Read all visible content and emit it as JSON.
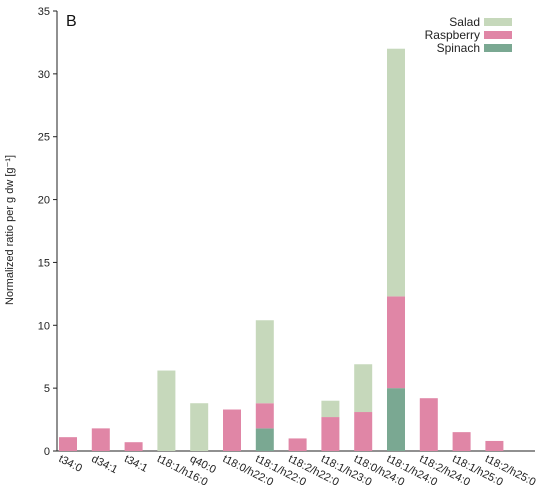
{
  "chart_data": {
    "type": "bar",
    "stacked": true,
    "panel_label": "B",
    "ylabel": "Normalized ratio per g dw [g⁻¹]",
    "xlabel": "",
    "ylim": [
      0,
      35
    ],
    "yticks": [
      0,
      5,
      10,
      15,
      20,
      25,
      30,
      35
    ],
    "grid": false,
    "legend_position": "top-right",
    "categories": [
      "t34:0",
      "d34:1",
      "t34:1",
      "t18:1/h16:0",
      "q40:0",
      "t18:0/h22:0",
      "t18:1/h22:0",
      "t18:2/h22:0",
      "t18:1/h23:0",
      "t18:0/h24:0",
      "t18:1/h24:0",
      "t18:2/h24:0",
      "t18:1/h25:0",
      "t18:2/h25:0"
    ],
    "series": [
      {
        "name": "Spinach",
        "color": "#7aa892",
        "values": [
          0,
          0,
          0,
          0,
          0,
          0,
          1.8,
          0,
          0,
          0,
          5.0,
          0,
          0,
          0
        ]
      },
      {
        "name": "Raspberry",
        "color": "#e086a6",
        "values": [
          1.1,
          1.8,
          0.7,
          0,
          0,
          3.3,
          2.0,
          1.0,
          2.7,
          3.1,
          7.3,
          4.2,
          1.5,
          0.8
        ]
      },
      {
        "name": "Salad",
        "color": "#c6d8bb",
        "values": [
          0,
          0,
          0,
          6.4,
          3.8,
          0,
          6.6,
          0,
          1.3,
          3.8,
          19.7,
          0,
          0,
          0
        ]
      }
    ],
    "series_order_bottom_to_top": [
      "Spinach",
      "Raspberry",
      "Salad"
    ]
  }
}
